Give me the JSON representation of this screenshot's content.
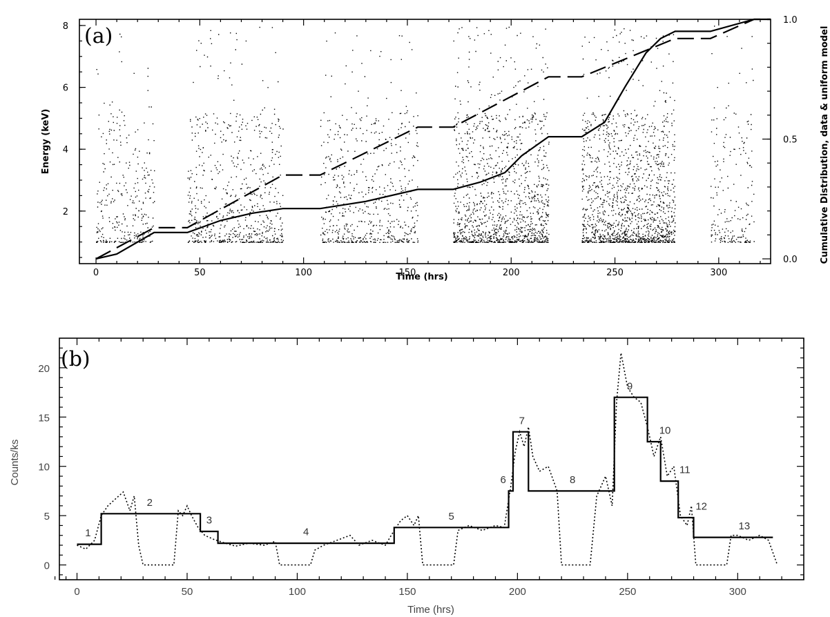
{
  "chart_data": [
    {
      "type": "scatter",
      "panel_label": "(a)",
      "xlabel": "Time (hrs)",
      "ylabel": "Energy (keV)",
      "y2label": "Cumulative Distribution, data & uniform model",
      "xlim": [
        -8,
        325
      ],
      "ylim": [
        0.3,
        8.2
      ],
      "y2lim": [
        -0.02,
        1.0
      ],
      "xticks": [
        "0",
        "50",
        "100",
        "150",
        "200",
        "250",
        "300"
      ],
      "yticks": [
        "2",
        "4",
        "6",
        "8"
      ],
      "y2ticks": [
        "0.0",
        "0.5",
        "1.0"
      ],
      "observation_windows": [
        {
          "start": 0,
          "end": 28,
          "density": 0.35
        },
        {
          "start": 44,
          "end": 90,
          "density": 0.45
        },
        {
          "start": 108,
          "end": 155,
          "density": 0.4
        },
        {
          "start": 172,
          "end": 218,
          "density": 0.85
        },
        {
          "start": 234,
          "end": 279,
          "density": 1.0
        },
        {
          "start": 296,
          "end": 317,
          "density": 0.3
        }
      ],
      "series": [
        {
          "style": "solid",
          "x": [
            0,
            10,
            28,
            44,
            60,
            75,
            90,
            108,
            130,
            155,
            172,
            185,
            197,
            205,
            218,
            234,
            245,
            255,
            265,
            272,
            279,
            296,
            317,
            325
          ],
          "y": [
            0.0,
            0.02,
            0.11,
            0.11,
            0.16,
            0.19,
            0.21,
            0.21,
            0.24,
            0.29,
            0.29,
            0.32,
            0.36,
            0.43,
            0.51,
            0.51,
            0.57,
            0.72,
            0.86,
            0.92,
            0.95,
            0.95,
            1.0,
            1.0
          ]
        },
        {
          "style": "dashed",
          "x": [
            0,
            28,
            44,
            90,
            108,
            155,
            172,
            218,
            234,
            279,
            296,
            317,
            325
          ],
          "y": [
            0.0,
            0.13,
            0.13,
            0.35,
            0.35,
            0.55,
            0.55,
            0.76,
            0.76,
            0.92,
            0.92,
            1.0,
            1.0
          ]
        }
      ]
    },
    {
      "type": "line",
      "panel_label": "(b)",
      "xlabel": "Time (hrs)",
      "ylabel": "Counts/ks",
      "xlim": [
        -8,
        330
      ],
      "ylim": [
        -1.5,
        23
      ],
      "xticks": [
        "0",
        "50",
        "100",
        "150",
        "200",
        "250",
        "300"
      ],
      "yticks": [
        "0",
        "5",
        "10",
        "15",
        "20"
      ],
      "series": [
        {
          "style": "solid",
          "x": [
            0,
            11,
            11,
            56,
            56,
            64,
            64,
            144,
            144,
            196,
            196,
            198,
            198,
            205,
            205,
            244,
            244,
            259,
            259,
            265,
            265,
            273,
            273,
            280,
            280,
            316
          ],
          "y": [
            2.1,
            2.1,
            5.2,
            5.2,
            3.4,
            3.4,
            2.2,
            2.2,
            3.8,
            3.8,
            7.5,
            7.5,
            13.5,
            13.5,
            7.5,
            7.5,
            17.0,
            17.0,
            12.5,
            12.5,
            8.5,
            8.5,
            4.8,
            4.8,
            2.8,
            2.8
          ]
        },
        {
          "style": "dotted",
          "x": [
            0,
            4,
            8,
            11,
            14,
            18,
            21,
            24,
            26,
            28,
            30,
            44,
            46,
            48,
            50,
            52,
            55,
            58,
            62,
            66,
            72,
            78,
            85,
            90,
            92,
            106,
            108,
            112,
            118,
            124,
            128,
            134,
            140,
            144,
            147,
            150,
            153,
            155,
            157,
            171,
            173,
            178,
            184,
            190,
            194,
            197,
            199,
            201,
            203,
            205,
            207,
            210,
            214,
            218,
            220,
            233,
            236,
            240,
            243,
            245,
            247,
            250,
            253,
            256,
            259,
            262,
            265,
            268,
            271,
            274,
            277,
            279,
            281,
            295,
            297,
            300,
            305,
            310,
            314,
            318
          ],
          "y": [
            2.0,
            1.6,
            2.5,
            5.0,
            6.0,
            6.8,
            7.4,
            5.5,
            7.0,
            2.0,
            0.0,
            0.0,
            5.5,
            5.0,
            6.0,
            5.0,
            3.8,
            3.0,
            2.6,
            2.3,
            1.9,
            2.2,
            2.0,
            2.4,
            0.0,
            0.0,
            1.5,
            2.0,
            2.5,
            3.0,
            2.0,
            2.5,
            2.0,
            3.5,
            4.5,
            5.0,
            4.0,
            5.0,
            0.0,
            0.0,
            3.5,
            4.0,
            3.5,
            4.0,
            3.8,
            8.0,
            11.5,
            13.5,
            12.0,
            14.0,
            11.0,
            9.5,
            10.0,
            7.5,
            0.0,
            0.0,
            7.0,
            9.0,
            6.0,
            16.5,
            21.5,
            18.0,
            17.0,
            16.5,
            14.0,
            11.0,
            13.0,
            9.0,
            10.0,
            5.0,
            4.0,
            6.0,
            0.0,
            0.0,
            3.0,
            3.0,
            2.5,
            3.0,
            2.5,
            0.0
          ]
        }
      ],
      "block_labels": [
        {
          "text": "1",
          "x": 5,
          "y": 2.9
        },
        {
          "text": "2",
          "x": 33,
          "y": 6.0
        },
        {
          "text": "3",
          "x": 60,
          "y": 4.2
        },
        {
          "text": "4",
          "x": 104,
          "y": 3.0
        },
        {
          "text": "5",
          "x": 170,
          "y": 4.6
        },
        {
          "text": "6",
          "x": 193.5,
          "y": 8.3
        },
        {
          "text": "7",
          "x": 202,
          "y": 14.3
        },
        {
          "text": "8",
          "x": 225,
          "y": 8.3
        },
        {
          "text": "9",
          "x": 251,
          "y": 17.8
        },
        {
          "text": "10",
          "x": 267,
          "y": 13.3
        },
        {
          "text": "11",
          "x": 276,
          "y": 9.3
        },
        {
          "text": "12",
          "x": 283.5,
          "y": 5.6
        },
        {
          "text": "13",
          "x": 303,
          "y": 3.6
        }
      ]
    }
  ]
}
